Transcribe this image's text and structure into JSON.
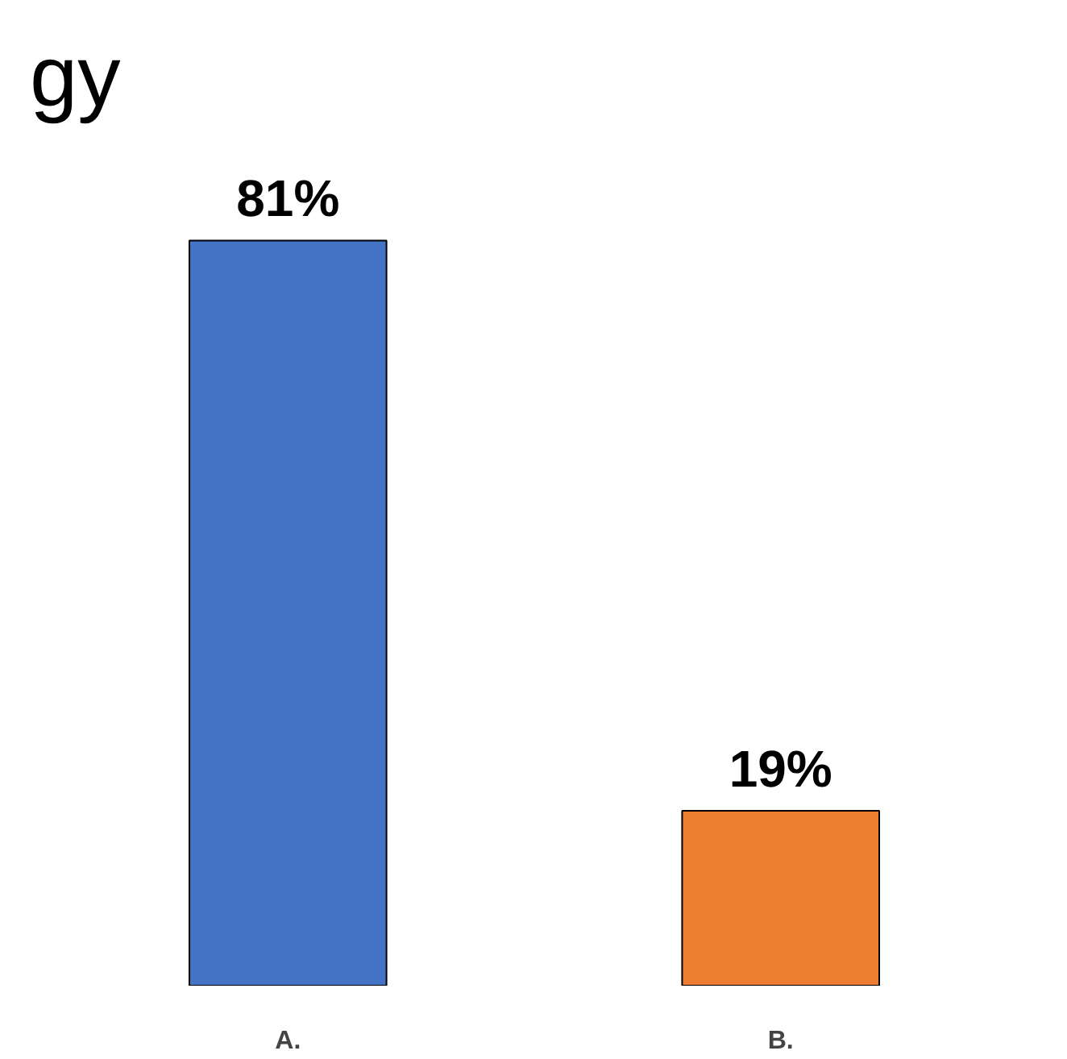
{
  "chart_data": {
    "type": "bar",
    "annotations": [
      "gy"
    ],
    "categories": [
      "A.",
      "B."
    ],
    "values": [
      81,
      19
    ],
    "colors": [
      "#4472c4",
      "#ed7d31"
    ],
    "data_labels": true,
    "value_labels": [
      "81%",
      "19%"
    ],
    "grid": false
  }
}
